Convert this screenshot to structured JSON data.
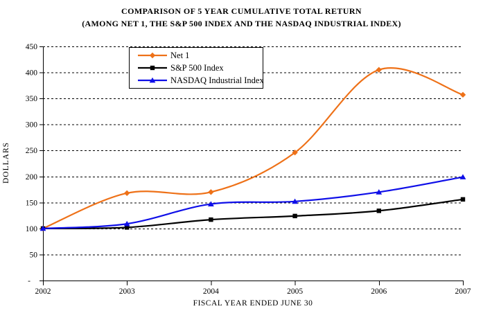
{
  "chart_data": {
    "type": "line",
    "title": "COMPARISON OF 5 YEAR CUMULATIVE TOTAL RETURN",
    "subtitle": "(AMONG NET 1, THE S&P 500 INDEX AND THE NASDAQ INDUSTRIAL INDEX)",
    "xlabel": "FISCAL YEAR ENDED JUNE 30",
    "ylabel": "DOLLARS",
    "categories": [
      "2002",
      "2003",
      "2004",
      "2005",
      "2006",
      "2007"
    ],
    "series": [
      {
        "name": "Net 1",
        "color": "#EE7118",
        "marker": "diamond",
        "values": [
          100,
          168,
          170,
          246,
          405,
          357
        ]
      },
      {
        "name": "S&P 500 Index",
        "color": "#000000",
        "marker": "square",
        "values": [
          100,
          102,
          117,
          124,
          134,
          156
        ]
      },
      {
        "name": "NASDAQ Industrial Index",
        "color": "#0F0FE8",
        "marker": "triangle",
        "values": [
          100,
          109,
          147,
          152,
          170,
          199
        ]
      }
    ],
    "ylim": [
      0,
      450
    ],
    "ytick_step": 50,
    "ytick_labels_top_to_bottom": [
      "450",
      "400",
      "350",
      "300",
      "250",
      "200",
      "150",
      "100",
      "50",
      "-"
    ],
    "yzero_label": "-",
    "grid": "horizontal-dashed",
    "grid_color": "#000000",
    "line_style": "smoothed",
    "legend_position": "top-center-inside",
    "background_color": "#FFFFFF"
  }
}
